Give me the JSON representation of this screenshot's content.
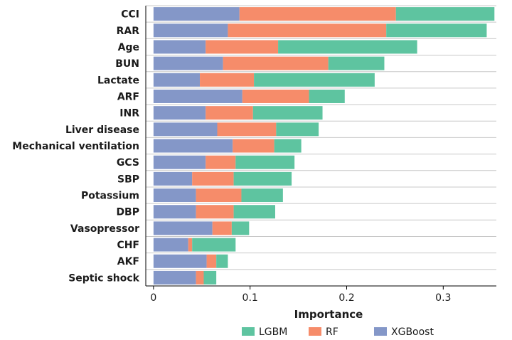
{
  "chart_data": {
    "type": "bar",
    "orientation": "horizontal",
    "stacked": true,
    "title": "",
    "xlabel": "Importance",
    "ylabel": "",
    "xlim": [
      -0.008,
      0.355
    ],
    "xticks": [
      0,
      0.1,
      0.2,
      0.3
    ],
    "xtick_labels": [
      "0",
      "0.1",
      "0.2",
      "0.3"
    ],
    "grid": "horizontal lines between categories",
    "legend_position": "bottom",
    "categories": [
      "CCI",
      "RAR",
      "Age",
      "BUN",
      "Lactate",
      "ARF",
      "INR",
      "Liver disease",
      "Mechanical ventilation",
      "GCS",
      "SBP",
      "Potassium",
      "DBP",
      "Vasopressor",
      "CHF",
      "AKF",
      "Septic shock"
    ],
    "series": [
      {
        "name": "XGBoost",
        "color": "#8497c8",
        "values": [
          0.089,
          0.077,
          0.054,
          0.072,
          0.048,
          0.092,
          0.054,
          0.066,
          0.082,
          0.054,
          0.04,
          0.044,
          0.044,
          0.061,
          0.036,
          0.055,
          0.044
        ]
      },
      {
        "name": "RF",
        "color": "#f68c6a",
        "values": [
          0.162,
          0.164,
          0.075,
          0.109,
          0.056,
          0.069,
          0.049,
          0.061,
          0.043,
          0.031,
          0.043,
          0.047,
          0.039,
          0.02,
          0.004,
          0.01,
          0.008
        ]
      },
      {
        "name": "LGBM",
        "color": "#5ec4a0",
        "values": [
          0.102,
          0.104,
          0.144,
          0.058,
          0.125,
          0.037,
          0.072,
          0.044,
          0.028,
          0.061,
          0.06,
          0.043,
          0.043,
          0.018,
          0.045,
          0.012,
          0.013
        ]
      }
    ],
    "legend_order": [
      "LGBM",
      "RF",
      "XGBoost"
    ]
  }
}
